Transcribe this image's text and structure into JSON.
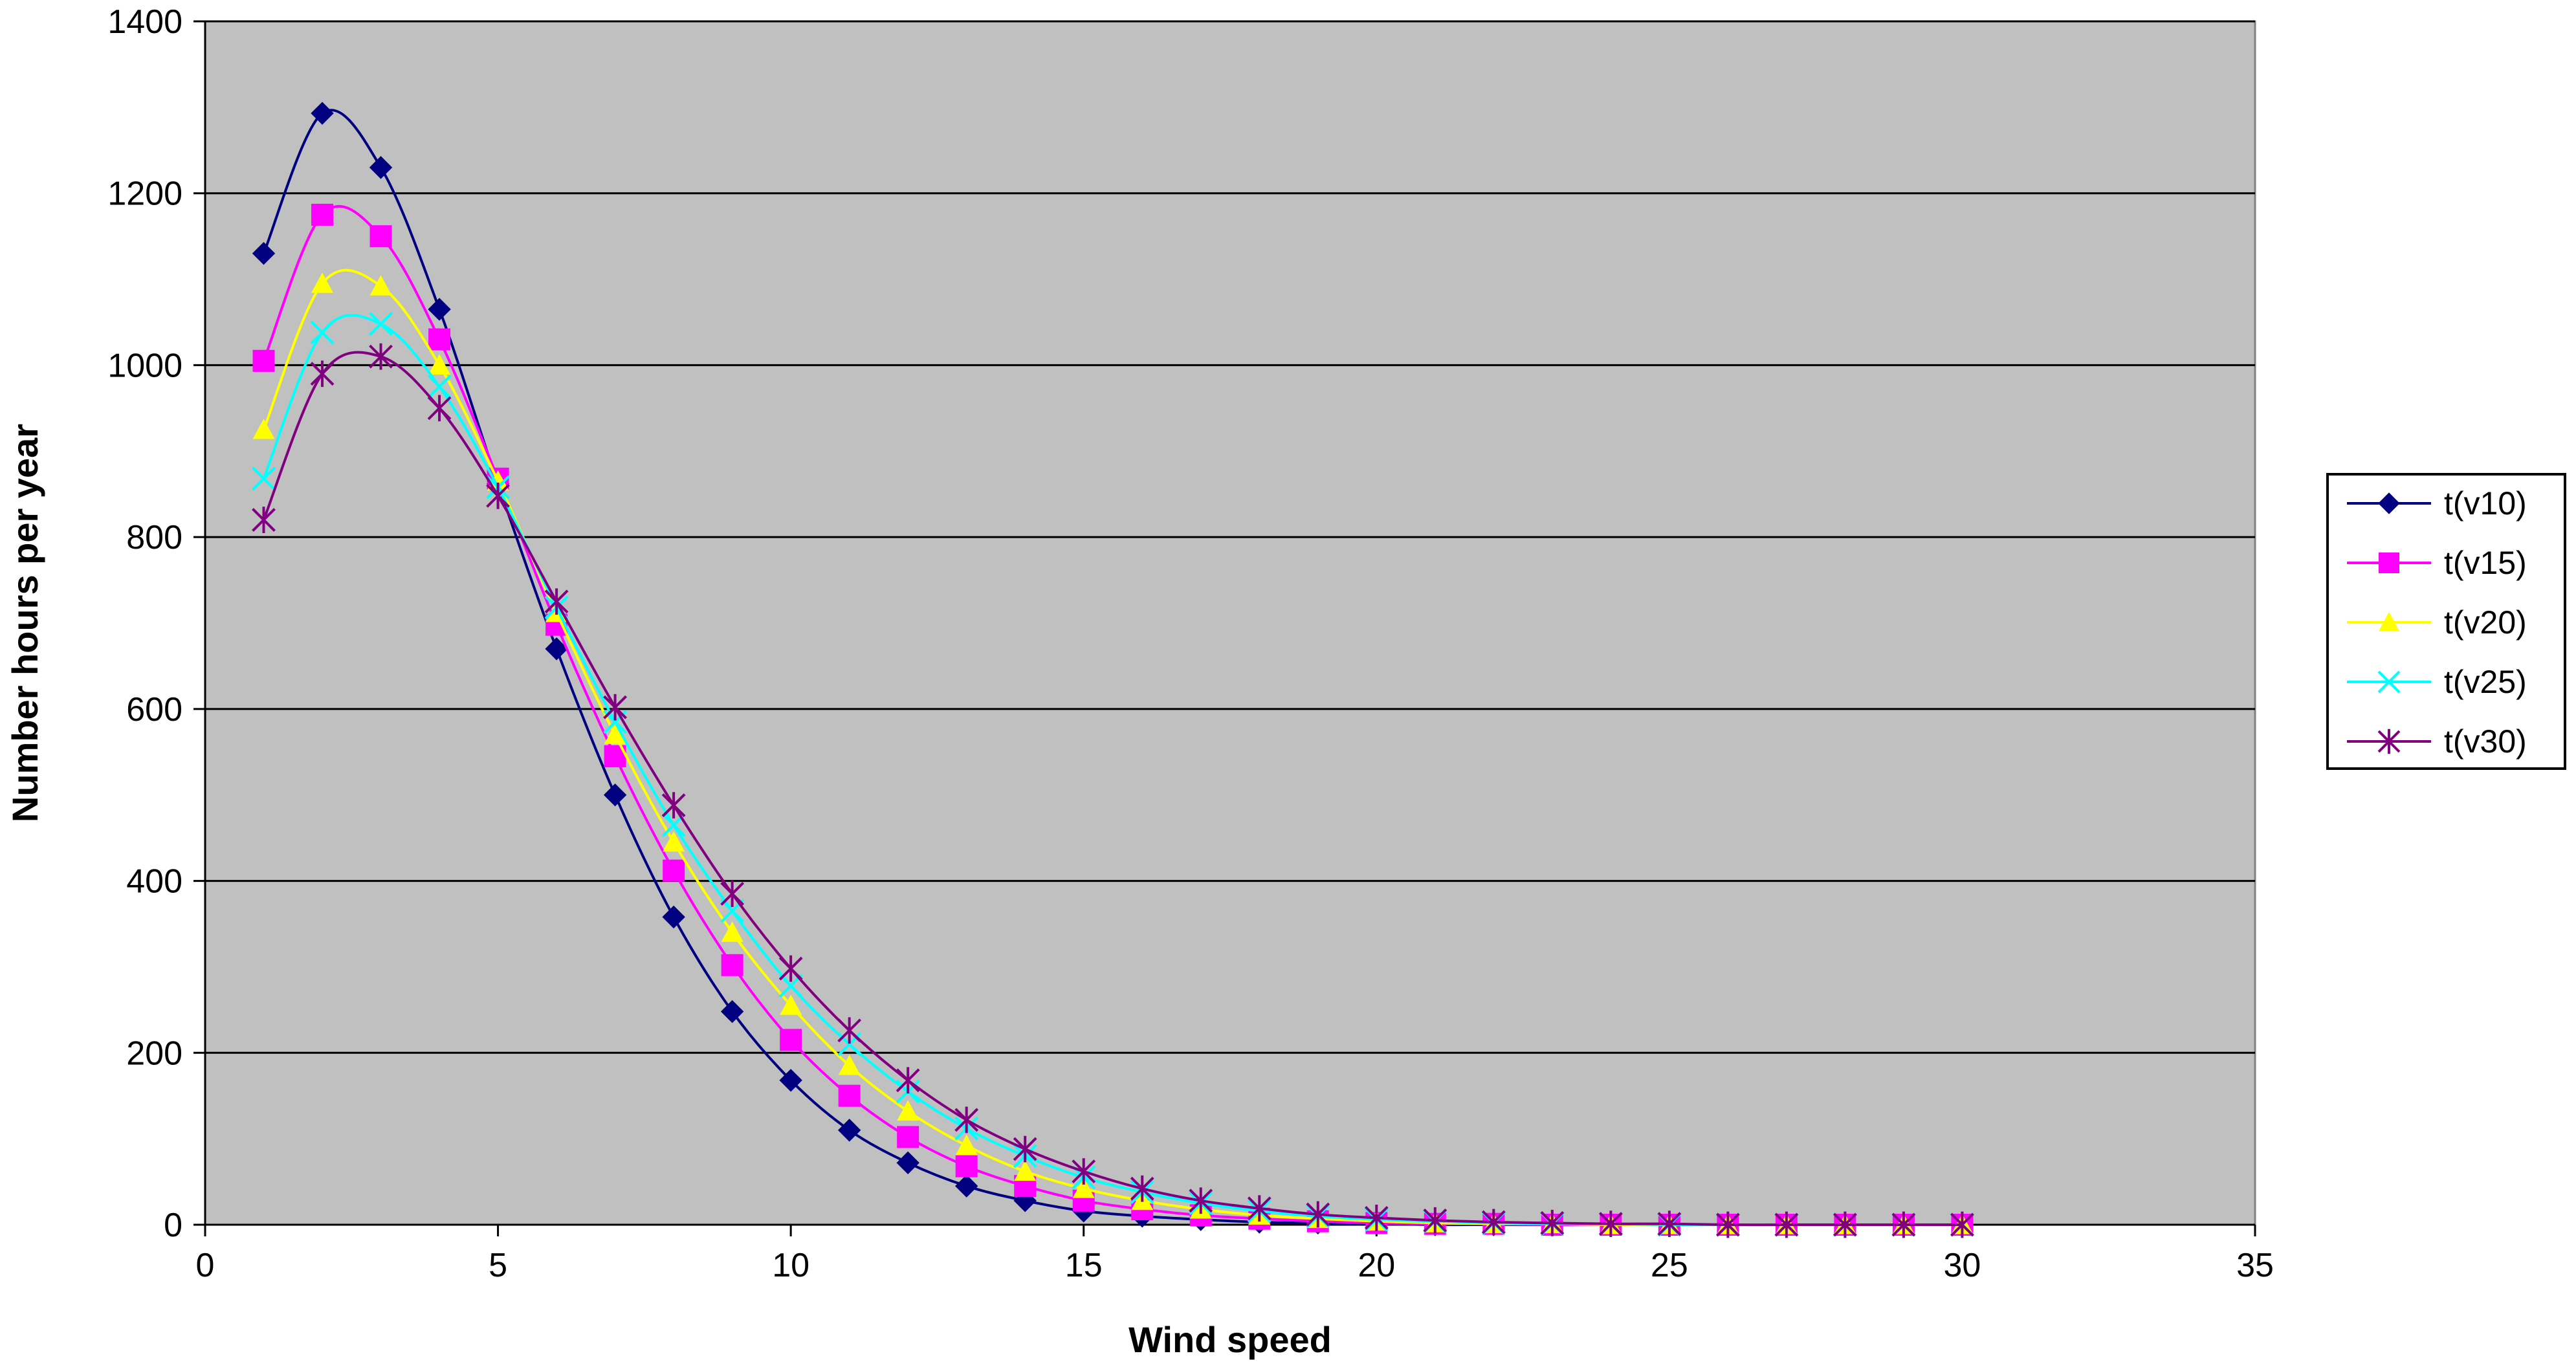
{
  "chart_data": {
    "type": "line",
    "title": "",
    "xlabel": "Wind speed",
    "ylabel": "Number hours per year",
    "xlim": [
      0,
      35
    ],
    "ylim": [
      0,
      1400
    ],
    "x_ticks": [
      0,
      5,
      10,
      15,
      20,
      25,
      30,
      35
    ],
    "y_ticks": [
      0,
      200,
      400,
      600,
      800,
      1000,
      1200,
      1400
    ],
    "grid": "horizontal",
    "legend_position": "right",
    "plot_background": "#c0c0c0",
    "x": [
      1,
      2,
      3,
      4,
      5,
      6,
      7,
      8,
      9,
      10,
      11,
      12,
      13,
      14,
      15,
      16,
      17,
      18,
      19,
      20,
      21,
      22,
      23,
      24,
      25,
      26,
      27,
      28,
      29,
      30
    ],
    "series": [
      {
        "name": "t(v10)",
        "color": "#000080",
        "marker": "diamond",
        "values": [
          1130,
          1293,
          1230,
          1065,
          862,
          670,
          500,
          358,
          248,
          168,
          110,
          72,
          45,
          28,
          16,
          10,
          6,
          3,
          2,
          1,
          0,
          0,
          0,
          0,
          0,
          0,
          0,
          0,
          0,
          0
        ]
      },
      {
        "name": "t(v15)",
        "color": "#ff00ff",
        "marker": "square",
        "values": [
          1005,
          1175,
          1150,
          1030,
          868,
          698,
          545,
          412,
          302,
          215,
          150,
          102,
          68,
          45,
          28,
          18,
          11,
          7,
          4,
          2,
          1,
          1,
          0,
          0,
          0,
          0,
          0,
          0,
          0,
          0
        ]
      },
      {
        "name": "t(v20)",
        "color": "#ffff00",
        "marker": "triangle",
        "values": [
          925,
          1095,
          1092,
          1000,
          865,
          712,
          570,
          445,
          340,
          255,
          185,
          132,
          92,
          62,
          42,
          28,
          18,
          11,
          7,
          4,
          2,
          1,
          1,
          0,
          0,
          0,
          0,
          0,
          0,
          0
        ]
      },
      {
        "name": "t(v25)",
        "color": "#00ffff",
        "marker": "x",
        "values": [
          868,
          1038,
          1048,
          975,
          858,
          718,
          585,
          465,
          365,
          278,
          210,
          155,
          112,
          80,
          55,
          38,
          25,
          16,
          10,
          6,
          4,
          2,
          1,
          1,
          0,
          0,
          0,
          0,
          0,
          0
        ]
      },
      {
        "name": "t(v30)",
        "color": "#800080",
        "marker": "star",
        "values": [
          820,
          990,
          1010,
          950,
          848,
          725,
          602,
          488,
          385,
          298,
          226,
          168,
          122,
          88,
          62,
          42,
          28,
          19,
          12,
          8,
          5,
          3,
          2,
          1,
          1,
          0,
          0,
          0,
          0,
          0
        ]
      }
    ]
  }
}
